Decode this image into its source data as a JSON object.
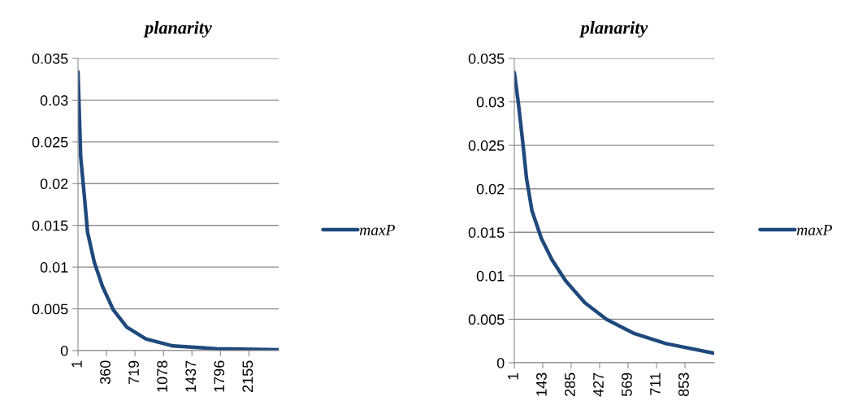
{
  "chart_data": [
    {
      "type": "line",
      "title": "planarity",
      "x": [
        1,
        35,
        86,
        121,
        206,
        309,
        445,
        616,
        856,
        1198,
        1745,
        2530
      ],
      "series": [
        {
          "name": "maxP",
          "color": "#1f497d",
          "values": [
            0.0334,
            0.0232,
            0.018,
            0.0142,
            0.0106,
            0.0077,
            0.0049,
            0.0028,
            0.0014,
            0.00055,
            0.00023,
            0.0001
          ]
        }
      ],
      "xlim": [
        1,
        2530
      ],
      "xticks": [
        1,
        360,
        719,
        1078,
        1437,
        1796,
        2155
      ],
      "ylim": [
        0,
        0.035
      ],
      "yticks": [
        0,
        0.005,
        0.01,
        0.015,
        0.02,
        0.025,
        0.03,
        0.035
      ],
      "grid": "y",
      "legend": "right",
      "marker": "none",
      "line_style": "solid"
    },
    {
      "type": "line",
      "title": "planarity",
      "x": [
        1,
        21,
        44,
        62,
        89,
        136,
        190,
        258,
        353,
        461,
        596,
        758,
        999
      ],
      "series": [
        {
          "name": "maxP",
          "color": "#1f497d",
          "values": [
            0.0334,
            0.0299,
            0.0252,
            0.0212,
            0.0175,
            0.0143,
            0.0118,
            0.0094,
            0.0069,
            0.005,
            0.0034,
            0.0022,
            0.0011
          ]
        }
      ],
      "xlim": [
        1,
        999
      ],
      "xticks": [
        1,
        143,
        285,
        427,
        569,
        711,
        853
      ],
      "ylim": [
        0,
        0.035
      ],
      "yticks": [
        0,
        0.005,
        0.01,
        0.015,
        0.02,
        0.025,
        0.03,
        0.035
      ],
      "grid": "y",
      "legend": "right",
      "marker": "none",
      "line_style": "solid"
    }
  ]
}
